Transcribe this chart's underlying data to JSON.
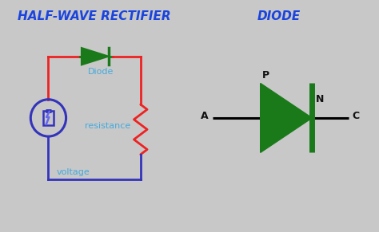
{
  "bg_color": "#c8c8c8",
  "title_left": "HALF-WAVE RECTIFIER",
  "title_right": "DIODE",
  "title_color": "#1a44dd",
  "title_fontsize": 11,
  "circuit_color_red": "#ee2222",
  "circuit_color_blue": "#3333bb",
  "circuit_color_green": "#1a7a1a",
  "diode_label": "Diode",
  "resistance_label": "resistance",
  "voltage_label": "voltage",
  "label_color": "#44aadd",
  "p_label": "P",
  "n_label": "N",
  "a_label": "A",
  "c_label": "C",
  "pnac_color": "#111111"
}
